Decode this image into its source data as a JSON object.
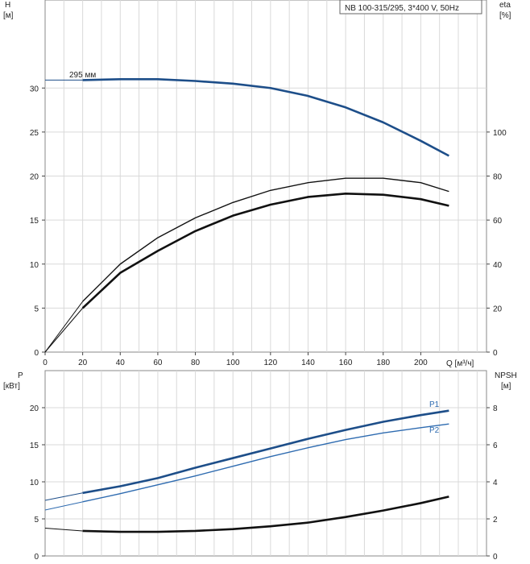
{
  "chart_data": [
    {
      "type": "line",
      "title": "NB 100-315/295, 3*400 V, 50Hz",
      "xlabel": "Q [м³/ч]",
      "x_ticks": [
        0,
        20,
        40,
        60,
        80,
        100,
        120,
        140,
        160,
        180,
        200
      ],
      "xlim": [
        0,
        235
      ],
      "y_left": {
        "name": "H",
        "unit": "[м]",
        "ticks": [
          0,
          5,
          10,
          15,
          20,
          25,
          30
        ],
        "lim": [
          0,
          40
        ]
      },
      "y_right": {
        "name": "eta",
        "unit": "[%]",
        "ticks": [
          0,
          20,
          40,
          60,
          80,
          100
        ],
        "lim": [
          0,
          160
        ]
      },
      "series": [
        {
          "name": "H",
          "axis": "left",
          "label": "295 мм",
          "color": "#1d4e89",
          "dashed_x": [
            0,
            20
          ],
          "x": [
            20,
            40,
            60,
            80,
            100,
            120,
            140,
            160,
            180,
            200,
            215
          ],
          "values": [
            30.9,
            31.0,
            31.0,
            30.8,
            30.5,
            30.0,
            29.1,
            27.8,
            26.1,
            24.0,
            22.3
          ]
        },
        {
          "name": "eta",
          "axis": "right",
          "color": "#111111",
          "dashed_x": [
            0,
            20
          ],
          "x": [
            0,
            20,
            40,
            60,
            80,
            100,
            120,
            140,
            160,
            180,
            200,
            215
          ],
          "values": [
            0,
            20,
            36,
            46,
            55,
            62,
            67,
            70.5,
            72,
            71.5,
            69.5,
            66.5
          ]
        },
        {
          "name": "eta2",
          "axis": "right",
          "color": "#111111",
          "dashed_x": [
            0,
            20
          ],
          "x": [
            0,
            20,
            40,
            60,
            80,
            100,
            120,
            140,
            160,
            180,
            200,
            215
          ],
          "values": [
            0,
            23,
            40,
            52,
            61,
            68,
            73.5,
            77,
            79,
            79,
            77,
            73
          ]
        }
      ]
    },
    {
      "type": "line",
      "xlabel": "",
      "x_ticks": [],
      "xlim": [
        0,
        235
      ],
      "y_left": {
        "name": "P",
        "unit": "[кВт]",
        "ticks": [
          0,
          5,
          10,
          15,
          20
        ],
        "lim": [
          0,
          25
        ]
      },
      "y_right": {
        "name": "NPSH",
        "unit": "[м]",
        "ticks": [
          0,
          2,
          4,
          6,
          8
        ],
        "lim": [
          0,
          10
        ]
      },
      "series": [
        {
          "name": "P1",
          "axis": "left",
          "label": "P1",
          "color": "#1d4e89",
          "dashed_x": [
            0,
            20
          ],
          "x": [
            0,
            20,
            40,
            60,
            80,
            100,
            120,
            140,
            160,
            180,
            200,
            215
          ],
          "values": [
            7.5,
            8.5,
            9.4,
            10.5,
            11.9,
            13.2,
            14.5,
            15.8,
            17.0,
            18.1,
            19.0,
            19.6
          ]
        },
        {
          "name": "P2",
          "axis": "left",
          "label": "P2",
          "color": "#2e6bb0",
          "dashed_x": [
            0,
            20
          ],
          "x": [
            0,
            20,
            40,
            60,
            80,
            100,
            120,
            140,
            160,
            180,
            200,
            215
          ],
          "values": [
            6.2,
            7.3,
            8.4,
            9.6,
            10.8,
            12.1,
            13.4,
            14.6,
            15.7,
            16.6,
            17.3,
            17.8
          ]
        },
        {
          "name": "NPSH",
          "axis": "right",
          "color": "#111111",
          "dashed_x": [
            0,
            20
          ],
          "x": [
            0,
            20,
            40,
            60,
            80,
            100,
            120,
            140,
            160,
            180,
            200,
            215
          ],
          "values": [
            1.5,
            1.35,
            1.3,
            1.3,
            1.35,
            1.45,
            1.6,
            1.8,
            2.1,
            2.45,
            2.85,
            3.2
          ]
        }
      ]
    }
  ]
}
